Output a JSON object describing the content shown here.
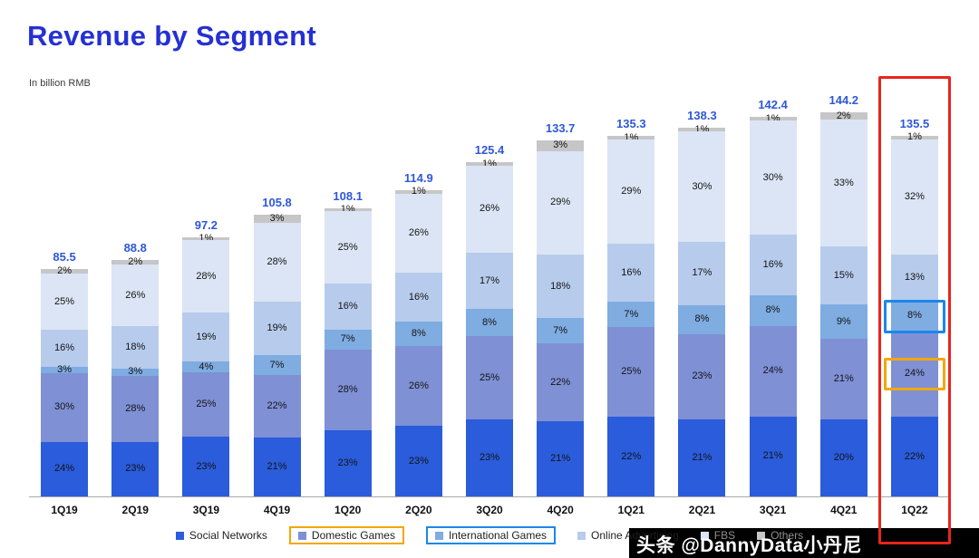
{
  "watermark": {
    "text": "头条 @DannyData小丹尼"
  },
  "legend": {
    "dimmed_items": [
      "FBS",
      "Others"
    ]
  },
  "chart_data": {
    "type": "bar",
    "stacked": true,
    "percent_labels": true,
    "title": "Revenue by Segment",
    "subtitle": "In billion RMB",
    "legend_position": "bottom",
    "categories": [
      "1Q19",
      "2Q19",
      "3Q19",
      "4Q19",
      "1Q20",
      "2Q20",
      "3Q20",
      "4Q20",
      "1Q21",
      "2Q21",
      "3Q21",
      "4Q21",
      "1Q22"
    ],
    "totals": [
      85.5,
      88.8,
      97.2,
      105.8,
      108.1,
      114.9,
      125.4,
      133.7,
      135.3,
      138.3,
      142.4,
      144.2,
      135.5
    ],
    "series": [
      {
        "name": "Social Networks",
        "color": "#2a5cdb",
        "values": [
          24,
          23,
          23,
          21,
          23,
          23,
          23,
          21,
          22,
          21,
          21,
          20,
          22
        ]
      },
      {
        "name": "Domestic Games",
        "color": "#7f90d5",
        "values": [
          30,
          28,
          25,
          22,
          28,
          26,
          25,
          22,
          25,
          23,
          24,
          21,
          24
        ]
      },
      {
        "name": "International Games",
        "color": "#7face1",
        "values": [
          3,
          3,
          4,
          7,
          7,
          8,
          8,
          7,
          7,
          8,
          8,
          9,
          8
        ]
      },
      {
        "name": "Online Advertising",
        "color": "#b7cbec",
        "values": [
          16,
          18,
          19,
          19,
          16,
          16,
          17,
          18,
          16,
          17,
          16,
          15,
          13
        ]
      },
      {
        "name": "FBS",
        "color": "#dbe5f5",
        "values": [
          25,
          26,
          28,
          28,
          25,
          26,
          26,
          29,
          29,
          30,
          30,
          33,
          32
        ]
      },
      {
        "name": "Others",
        "color": "#c6c6c8",
        "values": [
          2,
          2,
          1,
          3,
          1,
          1,
          1,
          3,
          1,
          1,
          1,
          2,
          1
        ]
      }
    ],
    "colors": {
      "title": "#2531d2",
      "total_label": "#2e57d9",
      "axis_line": "#a8a8a8"
    },
    "highlights": {
      "highlighted_category": "1Q22",
      "column_box_color": "#e8251c",
      "segment_boxes": [
        {
          "category": "1Q22",
          "series": "International Games",
          "color": "#1b87ea",
          "fit": "segment"
        },
        {
          "category": "1Q22",
          "series": "Domestic Games",
          "color": "#f2a70a",
          "fit": "label"
        }
      ],
      "legend_boxes": [
        {
          "series": "Domestic Games",
          "color": "#f2a70a"
        },
        {
          "series": "International Games",
          "color": "#1b87ea"
        }
      ]
    }
  }
}
